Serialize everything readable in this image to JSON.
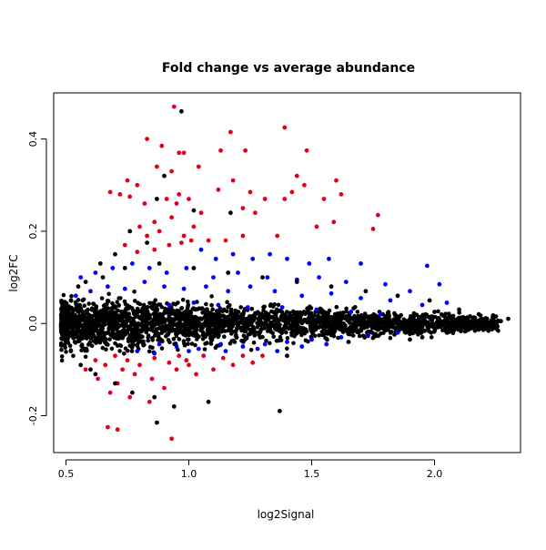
{
  "chart_data": {
    "type": "scatter",
    "title": "Fold change vs average abundance",
    "xlabel": "log2Signal",
    "ylabel": "log2FC",
    "xlim": [
      0.45,
      2.35
    ],
    "ylim": [
      -0.28,
      0.5
    ],
    "x_ticks": [
      "0.5",
      "1.0",
      "1.5",
      "2.0"
    ],
    "y_ticks": [
      "-0.2",
      "0.0",
      "0.2",
      "0.4"
    ],
    "grid": false,
    "legend": "none",
    "colors": {
      "not_significant": "#000000",
      "significant": "#0000ff",
      "highly_significant": "#e4001a"
    },
    "series": [
      {
        "color": "#e4001a",
        "points": [
          [
            0.94,
            0.47
          ],
          [
            0.83,
            0.4
          ],
          [
            0.89,
            0.385
          ],
          [
            0.96,
            0.37
          ],
          [
            0.98,
            0.37
          ],
          [
            1.17,
            0.415
          ],
          [
            1.39,
            0.425
          ],
          [
            1.13,
            0.375
          ],
          [
            1.23,
            0.375
          ],
          [
            1.48,
            0.375
          ],
          [
            0.75,
            0.31
          ],
          [
            0.79,
            0.3
          ],
          [
            0.87,
            0.34
          ],
          [
            0.93,
            0.33
          ],
          [
            1.04,
            0.34
          ],
          [
            1.12,
            0.29
          ],
          [
            1.18,
            0.31
          ],
          [
            1.44,
            0.32
          ],
          [
            1.47,
            0.3
          ],
          [
            1.6,
            0.31
          ],
          [
            0.68,
            0.285
          ],
          [
            0.72,
            0.28
          ],
          [
            0.76,
            0.275
          ],
          [
            0.91,
            0.27
          ],
          [
            0.96,
            0.28
          ],
          [
            1.0,
            0.27
          ],
          [
            1.25,
            0.285
          ],
          [
            1.39,
            0.27
          ],
          [
            1.42,
            0.285
          ],
          [
            1.55,
            0.27
          ],
          [
            1.62,
            0.28
          ],
          [
            0.82,
            0.26
          ],
          [
            0.95,
            0.26
          ],
          [
            1.05,
            0.24
          ],
          [
            1.22,
            0.25
          ],
          [
            1.27,
            0.24
          ],
          [
            1.31,
            0.27
          ],
          [
            1.77,
            0.235
          ],
          [
            1.75,
            0.205
          ],
          [
            0.86,
            0.22
          ],
          [
            0.93,
            0.23
          ],
          [
            1.02,
            0.21
          ],
          [
            0.8,
            0.21
          ],
          [
            0.88,
            0.2
          ],
          [
            0.98,
            0.19
          ],
          [
            1.08,
            0.18
          ],
          [
            0.83,
            0.19
          ],
          [
            0.92,
            0.17
          ],
          [
            1.01,
            0.18
          ],
          [
            1.15,
            0.18
          ],
          [
            1.22,
            0.19
          ],
          [
            1.52,
            0.21
          ],
          [
            1.59,
            0.22
          ],
          [
            1.36,
            0.19
          ],
          [
            0.74,
            0.17
          ],
          [
            0.79,
            0.155
          ],
          [
            0.86,
            0.16
          ],
          [
            0.97,
            0.175
          ],
          [
            0.7,
            -0.07
          ],
          [
            0.75,
            -0.08
          ],
          [
            0.8,
            -0.09
          ],
          [
            0.86,
            -0.075
          ],
          [
            0.92,
            -0.085
          ],
          [
            0.99,
            -0.08
          ],
          [
            1.06,
            -0.07
          ],
          [
            1.14,
            -0.075
          ],
          [
            1.22,
            -0.07
          ],
          [
            1.3,
            -0.07
          ],
          [
            0.66,
            -0.09
          ],
          [
            0.73,
            -0.1
          ],
          [
            0.62,
            -0.08
          ],
          [
            0.58,
            -0.1
          ],
          [
            0.63,
            -0.12
          ],
          [
            0.71,
            -0.13
          ],
          [
            0.78,
            -0.11
          ],
          [
            0.85,
            -0.12
          ],
          [
            0.9,
            -0.14
          ],
          [
            0.95,
            -0.1
          ],
          [
            1.03,
            -0.11
          ],
          [
            1.1,
            -0.1
          ],
          [
            0.68,
            -0.15
          ],
          [
            0.76,
            -0.16
          ],
          [
            0.84,
            -0.17
          ],
          [
            0.67,
            -0.225
          ],
          [
            0.71,
            -0.23
          ],
          [
            0.93,
            -0.25
          ],
          [
            1.0,
            -0.09
          ],
          [
            1.18,
            -0.09
          ],
          [
            1.26,
            -0.085
          ],
          [
            0.96,
            -0.07
          ]
        ]
      },
      {
        "color": "#0000ff",
        "points": [
          [
            1.05,
            0.16
          ],
          [
            1.11,
            0.14
          ],
          [
            1.18,
            0.15
          ],
          [
            1.26,
            0.14
          ],
          [
            1.33,
            0.15
          ],
          [
            1.4,
            0.14
          ],
          [
            1.49,
            0.13
          ],
          [
            1.57,
            0.14
          ],
          [
            1.7,
            0.13
          ],
          [
            1.97,
            0.125
          ],
          [
            2.02,
            0.085
          ],
          [
            0.56,
            0.1
          ],
          [
            0.62,
            0.11
          ],
          [
            0.69,
            0.12
          ],
          [
            0.77,
            0.13
          ],
          [
            0.84,
            0.12
          ],
          [
            0.91,
            0.11
          ],
          [
            0.99,
            0.12
          ],
          [
            1.1,
            0.1
          ],
          [
            1.2,
            0.11
          ],
          [
            1.32,
            0.1
          ],
          [
            1.44,
            0.095
          ],
          [
            1.53,
            0.1
          ],
          [
            1.64,
            0.09
          ],
          [
            1.8,
            0.085
          ],
          [
            1.9,
            0.07
          ],
          [
            2.05,
            0.045
          ],
          [
            0.54,
            0.06
          ],
          [
            0.6,
            0.07
          ],
          [
            0.67,
            0.08
          ],
          [
            0.74,
            0.075
          ],
          [
            0.82,
            0.09
          ],
          [
            0.9,
            0.08
          ],
          [
            0.98,
            0.075
          ],
          [
            1.07,
            0.08
          ],
          [
            1.16,
            0.07
          ],
          [
            1.25,
            0.08
          ],
          [
            1.35,
            0.07
          ],
          [
            1.46,
            0.06
          ],
          [
            1.58,
            0.065
          ],
          [
            1.7,
            0.055
          ],
          [
            1.82,
            0.05
          ],
          [
            1.95,
            0.04
          ],
          [
            0.88,
            -0.045
          ],
          [
            0.95,
            -0.05
          ],
          [
            1.04,
            -0.055
          ],
          [
            1.13,
            -0.045
          ],
          [
            1.22,
            -0.05
          ],
          [
            1.31,
            -0.045
          ],
          [
            1.4,
            -0.04
          ],
          [
            1.5,
            -0.035
          ],
          [
            1.62,
            -0.03
          ],
          [
            1.73,
            -0.025
          ],
          [
            1.85,
            -0.02
          ],
          [
            0.79,
            -0.06
          ],
          [
            0.86,
            -0.065
          ],
          [
            1.0,
            -0.06
          ],
          [
            1.15,
            -0.06
          ],
          [
            1.28,
            -0.055
          ],
          [
            1.36,
            -0.06
          ],
          [
            1.46,
            -0.05
          ],
          [
            1.56,
            -0.045
          ],
          [
            0.92,
            0.04
          ],
          [
            1.02,
            0.045
          ],
          [
            1.12,
            0.04
          ],
          [
            1.24,
            0.035
          ],
          [
            1.38,
            0.035
          ],
          [
            1.52,
            0.03
          ],
          [
            1.66,
            0.025
          ],
          [
            1.78,
            0.02
          ]
        ]
      },
      {
        "color": "#000000",
        "points": [
          [
            0.97,
            0.46
          ],
          [
            0.9,
            0.32
          ],
          [
            0.87,
            0.27
          ],
          [
            1.02,
            0.245
          ],
          [
            1.17,
            0.24
          ],
          [
            0.76,
            0.2
          ],
          [
            0.83,
            0.175
          ],
          [
            0.7,
            0.15
          ],
          [
            0.64,
            0.13
          ],
          [
            0.58,
            0.09
          ],
          [
            0.52,
            0.05
          ],
          [
            0.49,
            0.02
          ],
          [
            0.48,
            -0.005
          ],
          [
            0.49,
            -0.03
          ],
          [
            0.52,
            -0.06
          ],
          [
            0.56,
            -0.09
          ],
          [
            0.62,
            -0.11
          ],
          [
            0.7,
            -0.13
          ],
          [
            0.77,
            -0.15
          ],
          [
            0.86,
            -0.16
          ],
          [
            0.94,
            -0.18
          ],
          [
            1.08,
            -0.17
          ],
          [
            0.87,
            -0.215
          ],
          [
            1.37,
            -0.19
          ],
          [
            1.4,
            -0.07
          ],
          [
            1.65,
            -0.04
          ],
          [
            1.9,
            -0.035
          ],
          [
            2.05,
            -0.02
          ],
          [
            2.15,
            -0.01
          ],
          [
            2.22,
            -0.005
          ],
          [
            2.27,
            0.005
          ],
          [
            2.3,
            0.01
          ],
          [
            2.25,
            0.015
          ],
          [
            2.18,
            0.02
          ],
          [
            2.1,
            0.03
          ],
          [
            1.98,
            0.05
          ],
          [
            1.85,
            0.06
          ],
          [
            1.72,
            0.07
          ],
          [
            1.58,
            0.08
          ],
          [
            1.44,
            0.09
          ],
          [
            1.3,
            0.1
          ],
          [
            1.16,
            0.11
          ],
          [
            1.02,
            0.12
          ],
          [
            0.88,
            0.13
          ],
          [
            0.74,
            0.12
          ],
          [
            0.65,
            0.1
          ],
          [
            1.95,
            -0.03
          ],
          [
            2.0,
            0.025
          ],
          [
            0.55,
            0.08
          ],
          [
            0.6,
            -0.1
          ]
        ]
      }
    ]
  }
}
